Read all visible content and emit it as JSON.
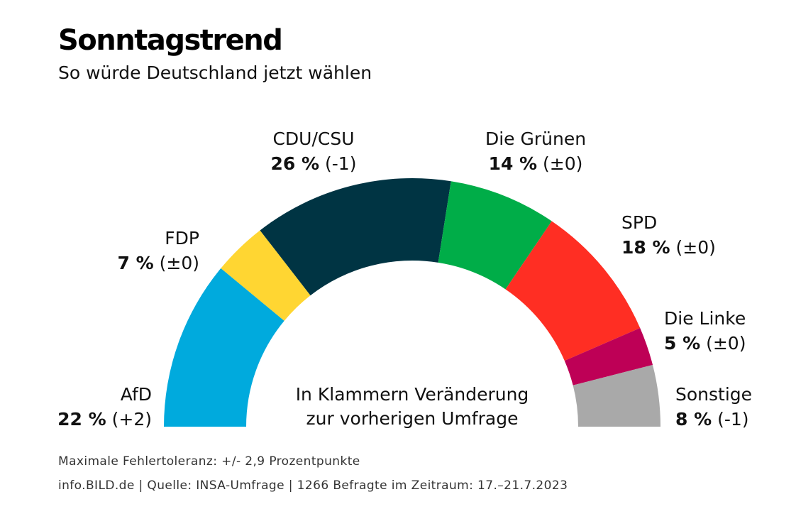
{
  "chart_data": {
    "type": "pie",
    "title": "Sonntagstrend",
    "subtitle": "So würde Deutschland jetzt wählen",
    "note_lines": [
      "In Klammern Veränderung",
      "zur vorherigen Umfrage"
    ],
    "slices": [
      {
        "name": "AfD",
        "value": 22,
        "value_label": "22 %",
        "change": "(+2)",
        "color": "#00aadd"
      },
      {
        "name": "FDP",
        "value": 7,
        "value_label": "7 %",
        "change": "(±0)",
        "color": "#ffd632"
      },
      {
        "name": "CDU/CSU",
        "value": 26,
        "value_label": "26 %",
        "change": "(-1)",
        "color": "#003443"
      },
      {
        "name": "Die Grünen",
        "value": 14,
        "value_label": "14 %",
        "change": "(±0)",
        "color": "#00ad48"
      },
      {
        "name": "SPD",
        "value": 18,
        "value_label": "18 %",
        "change": "(±0)",
        "color": "#ff2e23"
      },
      {
        "name": "Die Linke",
        "value": 5,
        "value_label": "5 %",
        "change": "(±0)",
        "color": "#be0056"
      },
      {
        "name": "Sonstige",
        "value": 8,
        "value_label": "8 %",
        "change": "(-1)",
        "color": "#a9a9a9"
      }
    ]
  },
  "footer": {
    "line1": "Maximale Fehlertoleranz: +/- 2,9 Prozentpunkte",
    "line2": "info.BILD.de | Quelle: INSA-Umfrage | 1266 Befragte im Zeitraum: 17.–21.7.2023"
  }
}
